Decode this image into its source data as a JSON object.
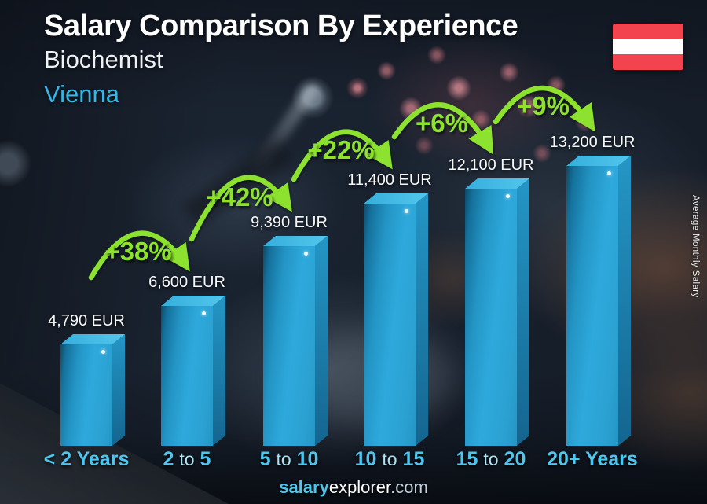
{
  "header": {
    "title": "Salary Comparison By Experience",
    "subtitle": "Biochemist",
    "city": "Vienna"
  },
  "flag": {
    "country": "Austria",
    "red": "#f2434e",
    "white": "#ffffff"
  },
  "side_label": "Average Monthly Salary",
  "footer": {
    "brand_bold": "salary",
    "brand_rest": "explorer",
    "tld": ".com"
  },
  "colors": {
    "accent_cyan": "#35b7e5",
    "label_cyan": "#4cc6ee",
    "accent_green": "#8ce22d",
    "bar_blue": "#2aa4d8",
    "value_text": "#f6f8fa"
  },
  "chart_data": {
    "type": "bar",
    "title": "Salary Comparison By Experience",
    "subtitle": "Biochemist",
    "region": "Vienna",
    "unit": "EUR",
    "ylabel": "Average Monthly Salary",
    "categories": [
      "< 2 Years",
      "2 to 5",
      "5 to 10",
      "10 to 15",
      "15 to 20",
      "20+ Years"
    ],
    "values": [
      4790,
      6600,
      9390,
      11400,
      12100,
      13200
    ],
    "value_labels": [
      "4,790 EUR",
      "6,600 EUR",
      "9,390 EUR",
      "11,400 EUR",
      "12,100 EUR",
      "13,200 EUR"
    ],
    "pct_changes": [
      "+38%",
      "+42%",
      "+22%",
      "+6%",
      "+9%"
    ],
    "legend": "none",
    "grid": false
  }
}
